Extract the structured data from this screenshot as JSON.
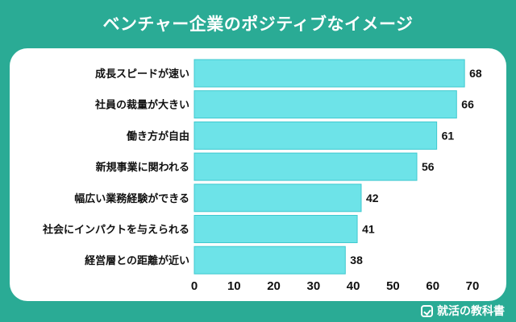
{
  "header": {
    "title": "ベンチャー企業のポジティブなイメージ"
  },
  "footer": {
    "brand": "就活の教科書"
  },
  "colors": {
    "background": "#2aab95",
    "bar": "#6de3e8",
    "bar_border": "#3fc9cf",
    "text": "#111111"
  },
  "chart_data": {
    "type": "bar",
    "orientation": "horizontal",
    "title": "ベンチャー企業のポジティブなイメージ",
    "categories": [
      "成長スピードが速い",
      "社員の裁量が大きい",
      "働き方が自由",
      "新規事業に関われる",
      "幅広い業務経験ができる",
      "社会にインパクトを与えられる",
      "経営層との距離が近い"
    ],
    "values": [
      68,
      66,
      61,
      56,
      42,
      41,
      38
    ],
    "xlim": [
      0,
      70
    ],
    "xticks": [
      0,
      10,
      20,
      30,
      40,
      50,
      60,
      70
    ],
    "grid": false,
    "data_labels": true
  }
}
